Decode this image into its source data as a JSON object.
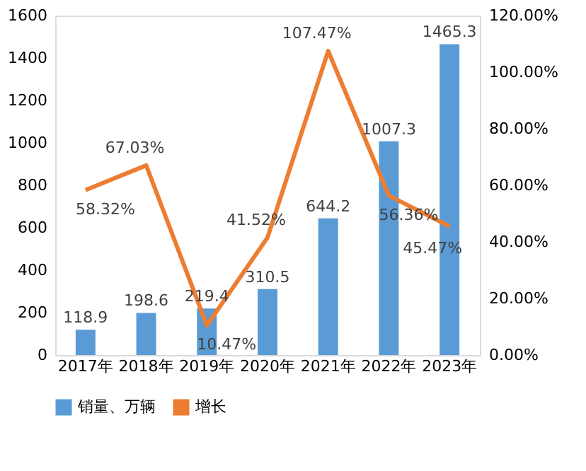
{
  "chart_data": {
    "type": "bar",
    "categories": [
      "2017年",
      "2018年",
      "2019年",
      "2020年",
      "2021年",
      "2022年",
      "2023年"
    ],
    "series": [
      {
        "name": "销量、万辆",
        "color": "#5b9bd5",
        "values": [
          118.9,
          198.6,
          219.4,
          310.5,
          644.2,
          1007.3,
          1465.3
        ],
        "value_labels": [
          "118.9",
          "198.6",
          "219.4",
          "310.5",
          "644.2",
          "1007.3",
          "1465.3"
        ]
      },
      {
        "name": "增长",
        "type": "line",
        "axis": "y2",
        "color": "#ed7d31",
        "values": [
          58.32,
          67.03,
          10.47,
          41.52,
          107.47,
          56.36,
          45.47
        ],
        "value_labels": [
          "58.32%",
          "67.03%",
          "10.47%",
          "41.52%",
          "107.47%",
          "56.36%",
          "45.47%"
        ]
      }
    ],
    "ylim": [
      0,
      1600
    ],
    "yticks": [
      0,
      200,
      400,
      600,
      800,
      1000,
      1200,
      1400,
      1600
    ],
    "y2lim": [
      0,
      120
    ],
    "y2ticks": [
      {
        "value": 0,
        "label": "0.00%"
      },
      {
        "value": 20,
        "label": "20.00%"
      },
      {
        "value": 40,
        "label": "40.00%"
      },
      {
        "value": 60,
        "label": "60.00%"
      },
      {
        "value": 80,
        "label": "80.00%"
      },
      {
        "value": 100,
        "label": "100.00%"
      },
      {
        "value": 120,
        "label": "120.00%"
      }
    ],
    "grid": false,
    "legend": "bottom",
    "marker": "none",
    "line_style": "solid"
  }
}
